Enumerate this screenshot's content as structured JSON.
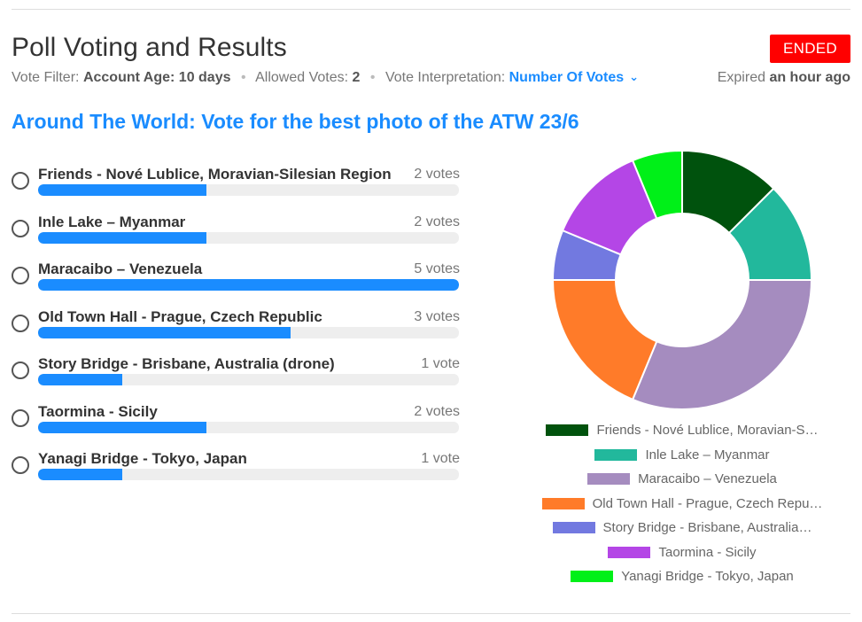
{
  "header": {
    "title": "Poll Voting and Results",
    "status": "ENDED"
  },
  "meta": {
    "filter_label": "Vote Filter:",
    "filter_value": "Account Age: 10 days",
    "allowed_label": "Allowed Votes:",
    "allowed_value": "2",
    "interp_label": "Vote Interpretation:",
    "interp_value": "Number Of Votes",
    "expired_prefix": "Expired",
    "expired_value": "an hour ago"
  },
  "poll": {
    "title": "Around The World: Vote for the best photo of the ATW 23/6",
    "max_votes": 5,
    "options": [
      {
        "label": "Friends - Nové Lublice, Moravian-Silesian Region",
        "votes": 2,
        "votes_text": "2 votes"
      },
      {
        "label": "Inle Lake – Myanmar",
        "votes": 2,
        "votes_text": "2 votes"
      },
      {
        "label": "Maracaibo – Venezuela",
        "votes": 5,
        "votes_text": "5 votes"
      },
      {
        "label": "Old Town Hall - Prague, Czech Republic",
        "votes": 3,
        "votes_text": "3 votes"
      },
      {
        "label": "Story Bridge - Brisbane, Australia (drone)",
        "votes": 1,
        "votes_text": "1 vote"
      },
      {
        "label": "Taormina - Sicily",
        "votes": 2,
        "votes_text": "2 votes"
      },
      {
        "label": "Yanagi Bridge - Tokyo, Japan",
        "votes": 1,
        "votes_text": "1 vote"
      }
    ]
  },
  "chart_data": {
    "type": "pie",
    "donut": true,
    "categories": [
      "Friends - Nové Lublice, Moravian-Silesian Region",
      "Inle Lake – Myanmar",
      "Maracaibo – Venezuela",
      "Old Town Hall - Prague, Czech Republic",
      "Story Bridge - Brisbane, Australia (drone)",
      "Taormina - Sicily",
      "Yanagi Bridge - Tokyo, Japan"
    ],
    "values": [
      2,
      2,
      5,
      3,
      1,
      2,
      1
    ],
    "colors": [
      "#00520d",
      "#22b89c",
      "#a58cbf",
      "#ff7b29",
      "#7279e0",
      "#b446e6",
      "#00f018"
    ],
    "legend": {
      "position": "bottom",
      "labels": [
        "Friends - Nové Lublice, Moravian-S…",
        "Inle Lake – Myanmar",
        "Maracaibo – Venezuela",
        "Old Town Hall - Prague, Czech Repu…",
        "Story Bridge - Brisbane, Australia…",
        "Taormina - Sicily",
        "Yanagi Bridge - Tokyo, Japan"
      ]
    }
  },
  "icons": {
    "interp_dropdown": "chevron-down-icon",
    "option_selector": "radio-icon"
  },
  "colors": {
    "accent": "#1a8cff",
    "ended": "#ff0000",
    "track": "#eeeeee"
  }
}
